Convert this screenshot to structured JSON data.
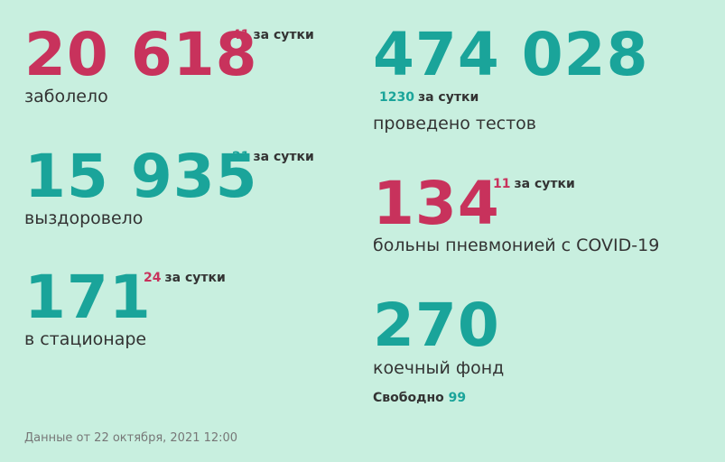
{
  "stats": {
    "infected": {
      "value": "20 618",
      "delta": "41",
      "delta_suffix": "за сутки",
      "label": "заболело",
      "color": "#c8325c",
      "delta_color": "#c8325c"
    },
    "recovered": {
      "value": "15 935",
      "delta": "21",
      "delta_suffix": "за сутки",
      "label": "выздоровело",
      "color": "#1aa49a",
      "delta_color": "#1aa49a"
    },
    "hospital": {
      "value": "171",
      "delta": "24",
      "delta_suffix": "за сутки",
      "label": "в стационаре",
      "color": "#1aa49a",
      "delta_color": "#c8325c"
    },
    "tests": {
      "value": "474 028",
      "delta": "1230",
      "delta_suffix": "за сутки",
      "label": "проведено тестов",
      "color": "#1aa49a",
      "delta_color": "#1aa49a"
    },
    "pneumonia": {
      "value": "134",
      "delta": "11",
      "delta_suffix": "за сутки",
      "label": "больны пневмонией с COVID-19",
      "color": "#c8325c",
      "delta_color": "#c8325c"
    },
    "beds": {
      "value": "270",
      "label": "коечный фонд",
      "free_label": "Свободно",
      "free_value": "99",
      "color": "#1aa49a",
      "free_color": "#1aa49a"
    }
  },
  "footer": "Данные от 22 октября, 2021 12:00"
}
